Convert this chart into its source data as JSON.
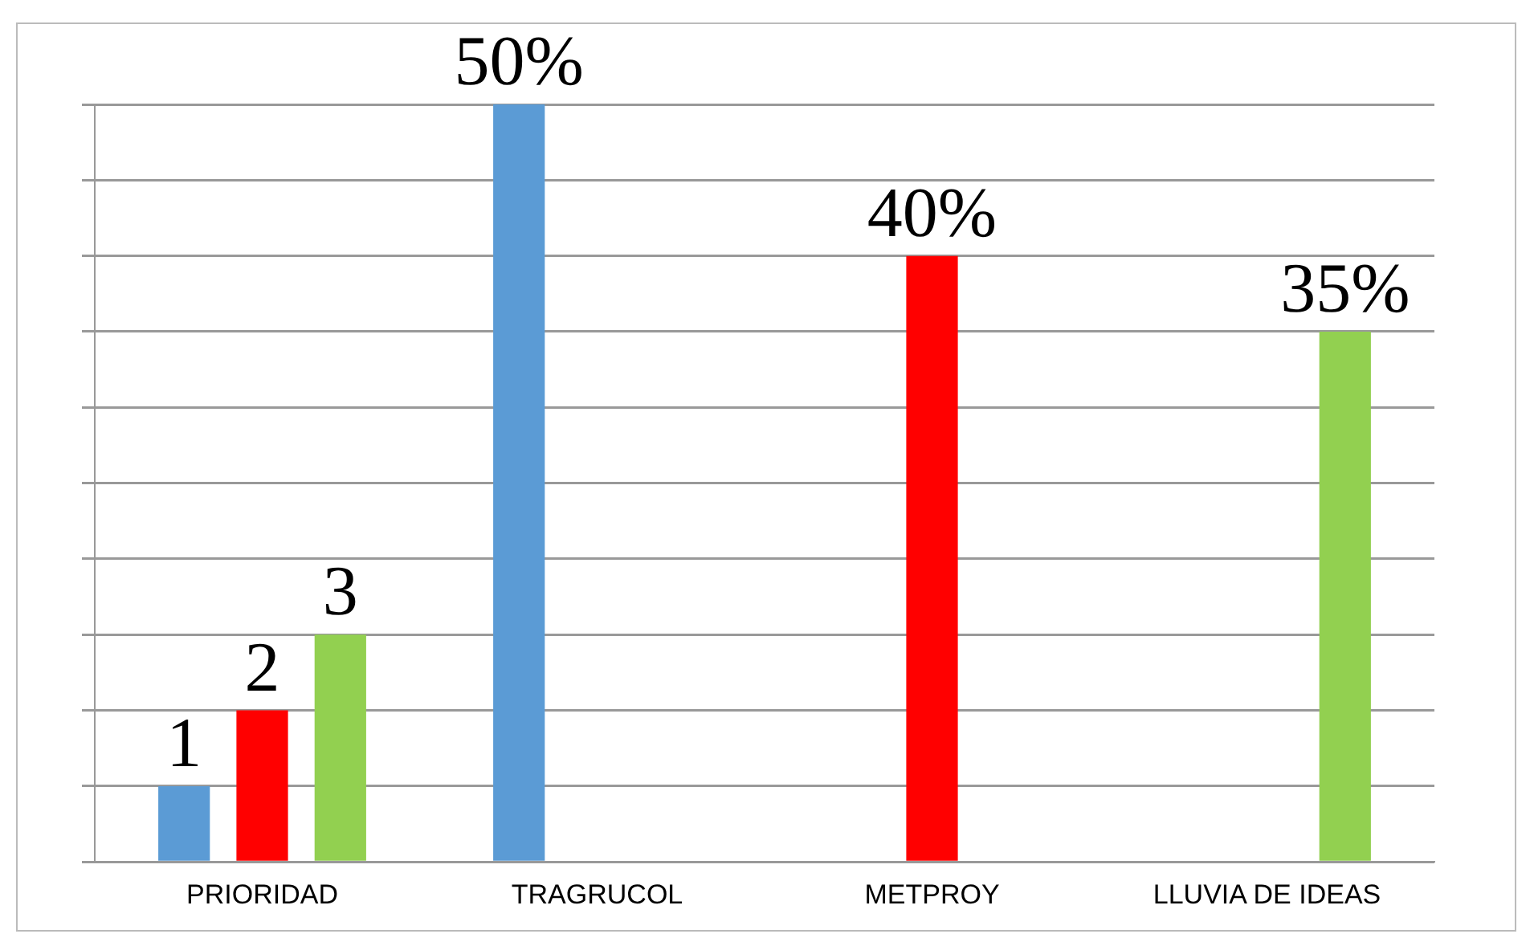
{
  "chart_data": {
    "type": "bar",
    "categories": [
      "PRIORIDAD",
      "TRAGRUCOL",
      "METPROY",
      "LLUVIA DE IDEAS"
    ],
    "series": [
      {
        "color": "#5b9bd5",
        "values": [
          5,
          50,
          null,
          null
        ],
        "value_labels": [
          null,
          "50%",
          null,
          null
        ]
      },
      {
        "color": "#ff0000",
        "values": [
          10,
          null,
          40,
          null
        ],
        "value_labels": [
          null,
          null,
          "40%",
          null
        ]
      },
      {
        "color": "#92d050",
        "values": [
          15,
          null,
          null,
          35
        ],
        "value_labels": [
          null,
          null,
          null,
          "35%"
        ]
      }
    ],
    "annotations": [
      "1",
      "2",
      "3"
    ],
    "ylim": [
      0,
      50
    ],
    "yticks": [
      {
        "value": 0,
        "label": null
      },
      {
        "value": 5,
        "label": null
      },
      {
        "value": 10,
        "label": null
      },
      {
        "value": 15,
        "label": null
      },
      {
        "value": 20,
        "label": null
      },
      {
        "value": 25,
        "label": null
      },
      {
        "value": 30,
        "label": null
      },
      {
        "value": 35,
        "label": null
      },
      {
        "value": 40,
        "label": null
      },
      {
        "value": 45,
        "label": null
      },
      {
        "value": 50,
        "label": null
      }
    ],
    "grid": "y",
    "tick_labels": "x",
    "legend": false
  }
}
